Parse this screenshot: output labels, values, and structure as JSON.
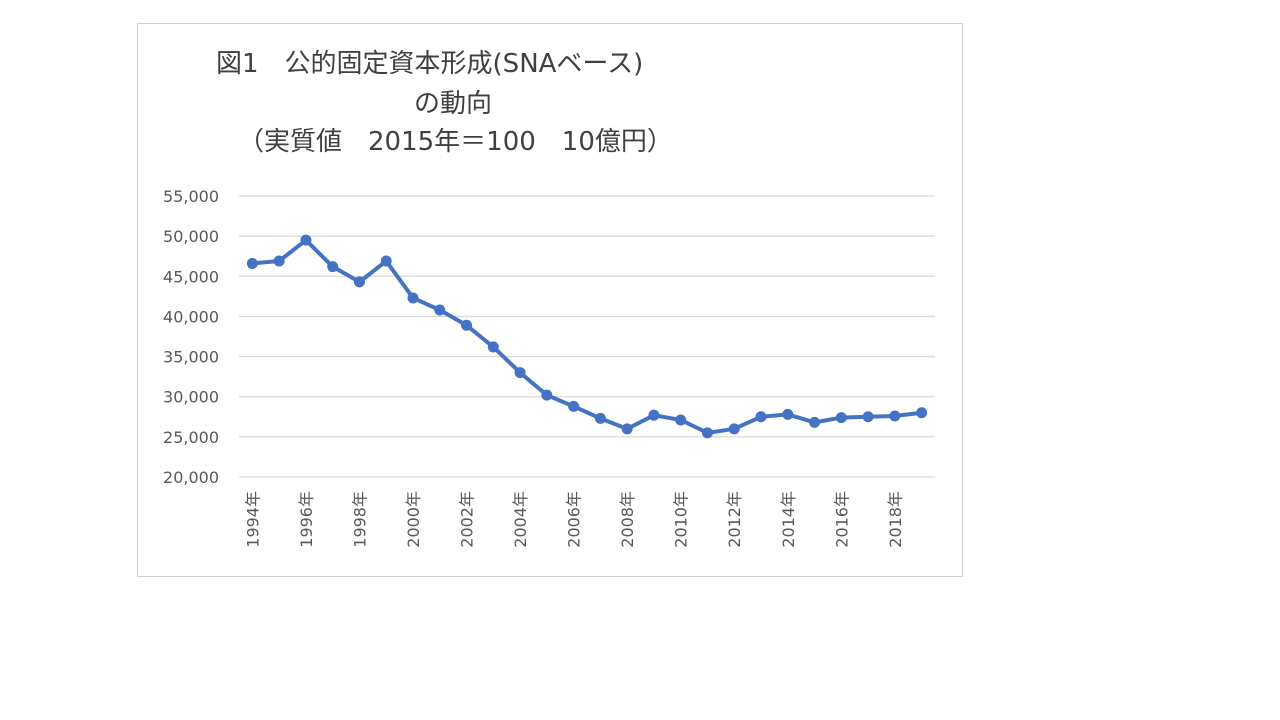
{
  "chart_data": {
    "type": "line",
    "title_lines": [
      "図1　公的固定資本形成(SNAベース)",
      "の動向",
      "（実質値　2015年＝100　10億円）"
    ],
    "xlabel": "",
    "ylabel": "",
    "ylim": [
      20000,
      55000
    ],
    "yticks": [
      "20,000",
      "25,000",
      "30,000",
      "35,000",
      "40,000",
      "45,000",
      "50,000",
      "55,000"
    ],
    "ytick_values": [
      20000,
      25000,
      30000,
      35000,
      40000,
      45000,
      50000,
      55000
    ],
    "x": [
      "1994年",
      "1995年",
      "1996年",
      "1997年",
      "1998年",
      "1999年",
      "2000年",
      "2001年",
      "2002年",
      "2003年",
      "2004年",
      "2005年",
      "2006年",
      "2007年",
      "2008年",
      "2009年",
      "2010年",
      "2011年",
      "2012年",
      "2013年",
      "2014年",
      "2015年",
      "2016年",
      "2017年",
      "2018年",
      "2019年"
    ],
    "x_tick_labels": [
      "1994年",
      "1996年",
      "1998年",
      "2000年",
      "2002年",
      "2004年",
      "2006年",
      "2008年",
      "2010年",
      "2012年",
      "2014年",
      "2016年",
      "2018年"
    ],
    "series": [
      {
        "values": [
          46600,
          46900,
          49500,
          46200,
          44300,
          46900,
          42300,
          40800,
          38900,
          36200,
          33000,
          30200,
          28800,
          27300,
          26000,
          27700,
          27100,
          25500,
          26000,
          27500,
          27800,
          26800,
          27400,
          27500,
          27600,
          28000
        ],
        "color": "#4472c4"
      }
    ],
    "grid": true,
    "legend": "none"
  }
}
